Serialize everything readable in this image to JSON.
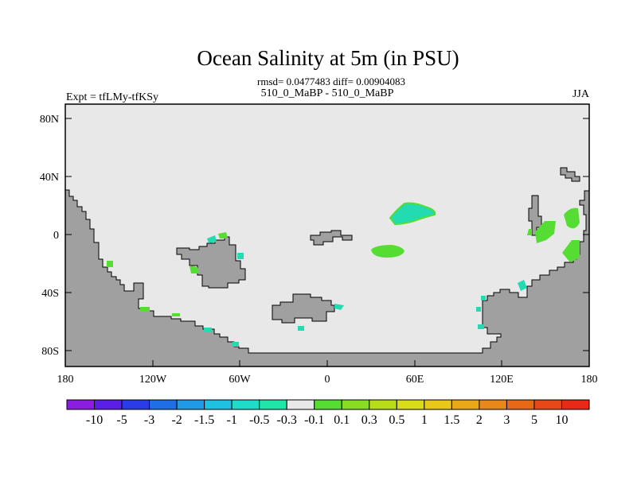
{
  "title": "Ocean Salinity at 5m (in PSU)",
  "stats": "rmsd= 0.0477483 diff= 0.00904083",
  "left_label": "Expt = tfLMy-tfKSy",
  "center_label": "510_0_MaBP - 510_0_MaBP",
  "right_label": "JJA",
  "colors": {
    "land": "#a0a0a0",
    "ocean_neutral": "#e8e8e8",
    "positive_small": "#55dd33",
    "negative_small": "#22dbb0"
  },
  "y_ticks": [
    "80N",
    "40N",
    "0",
    "40S",
    "80S"
  ],
  "x_ticks": [
    "180",
    "120W",
    "60W",
    "0",
    "60E",
    "120E",
    "180"
  ],
  "colorbar": {
    "colors": [
      "#8a1ee0",
      "#5a1ee6",
      "#2a3ce6",
      "#1e6ee6",
      "#1e9ae6",
      "#1ec2e0",
      "#1edcc8",
      "#1ee6a8",
      "#e8e8e8",
      "#55dd33",
      "#88dd22",
      "#b8dd18",
      "#d8dd18",
      "#e8c818",
      "#e8a818",
      "#e88818",
      "#e86818",
      "#e84818",
      "#e82818"
    ],
    "labels": [
      "-10",
      "-5",
      "-3",
      "-2",
      "-1.5",
      "-1",
      "-0.5",
      "-0.3",
      "-0.1",
      "0.1",
      "0.3",
      "0.5",
      "1",
      "1.5",
      "2",
      "3",
      "5",
      "10"
    ]
  }
}
